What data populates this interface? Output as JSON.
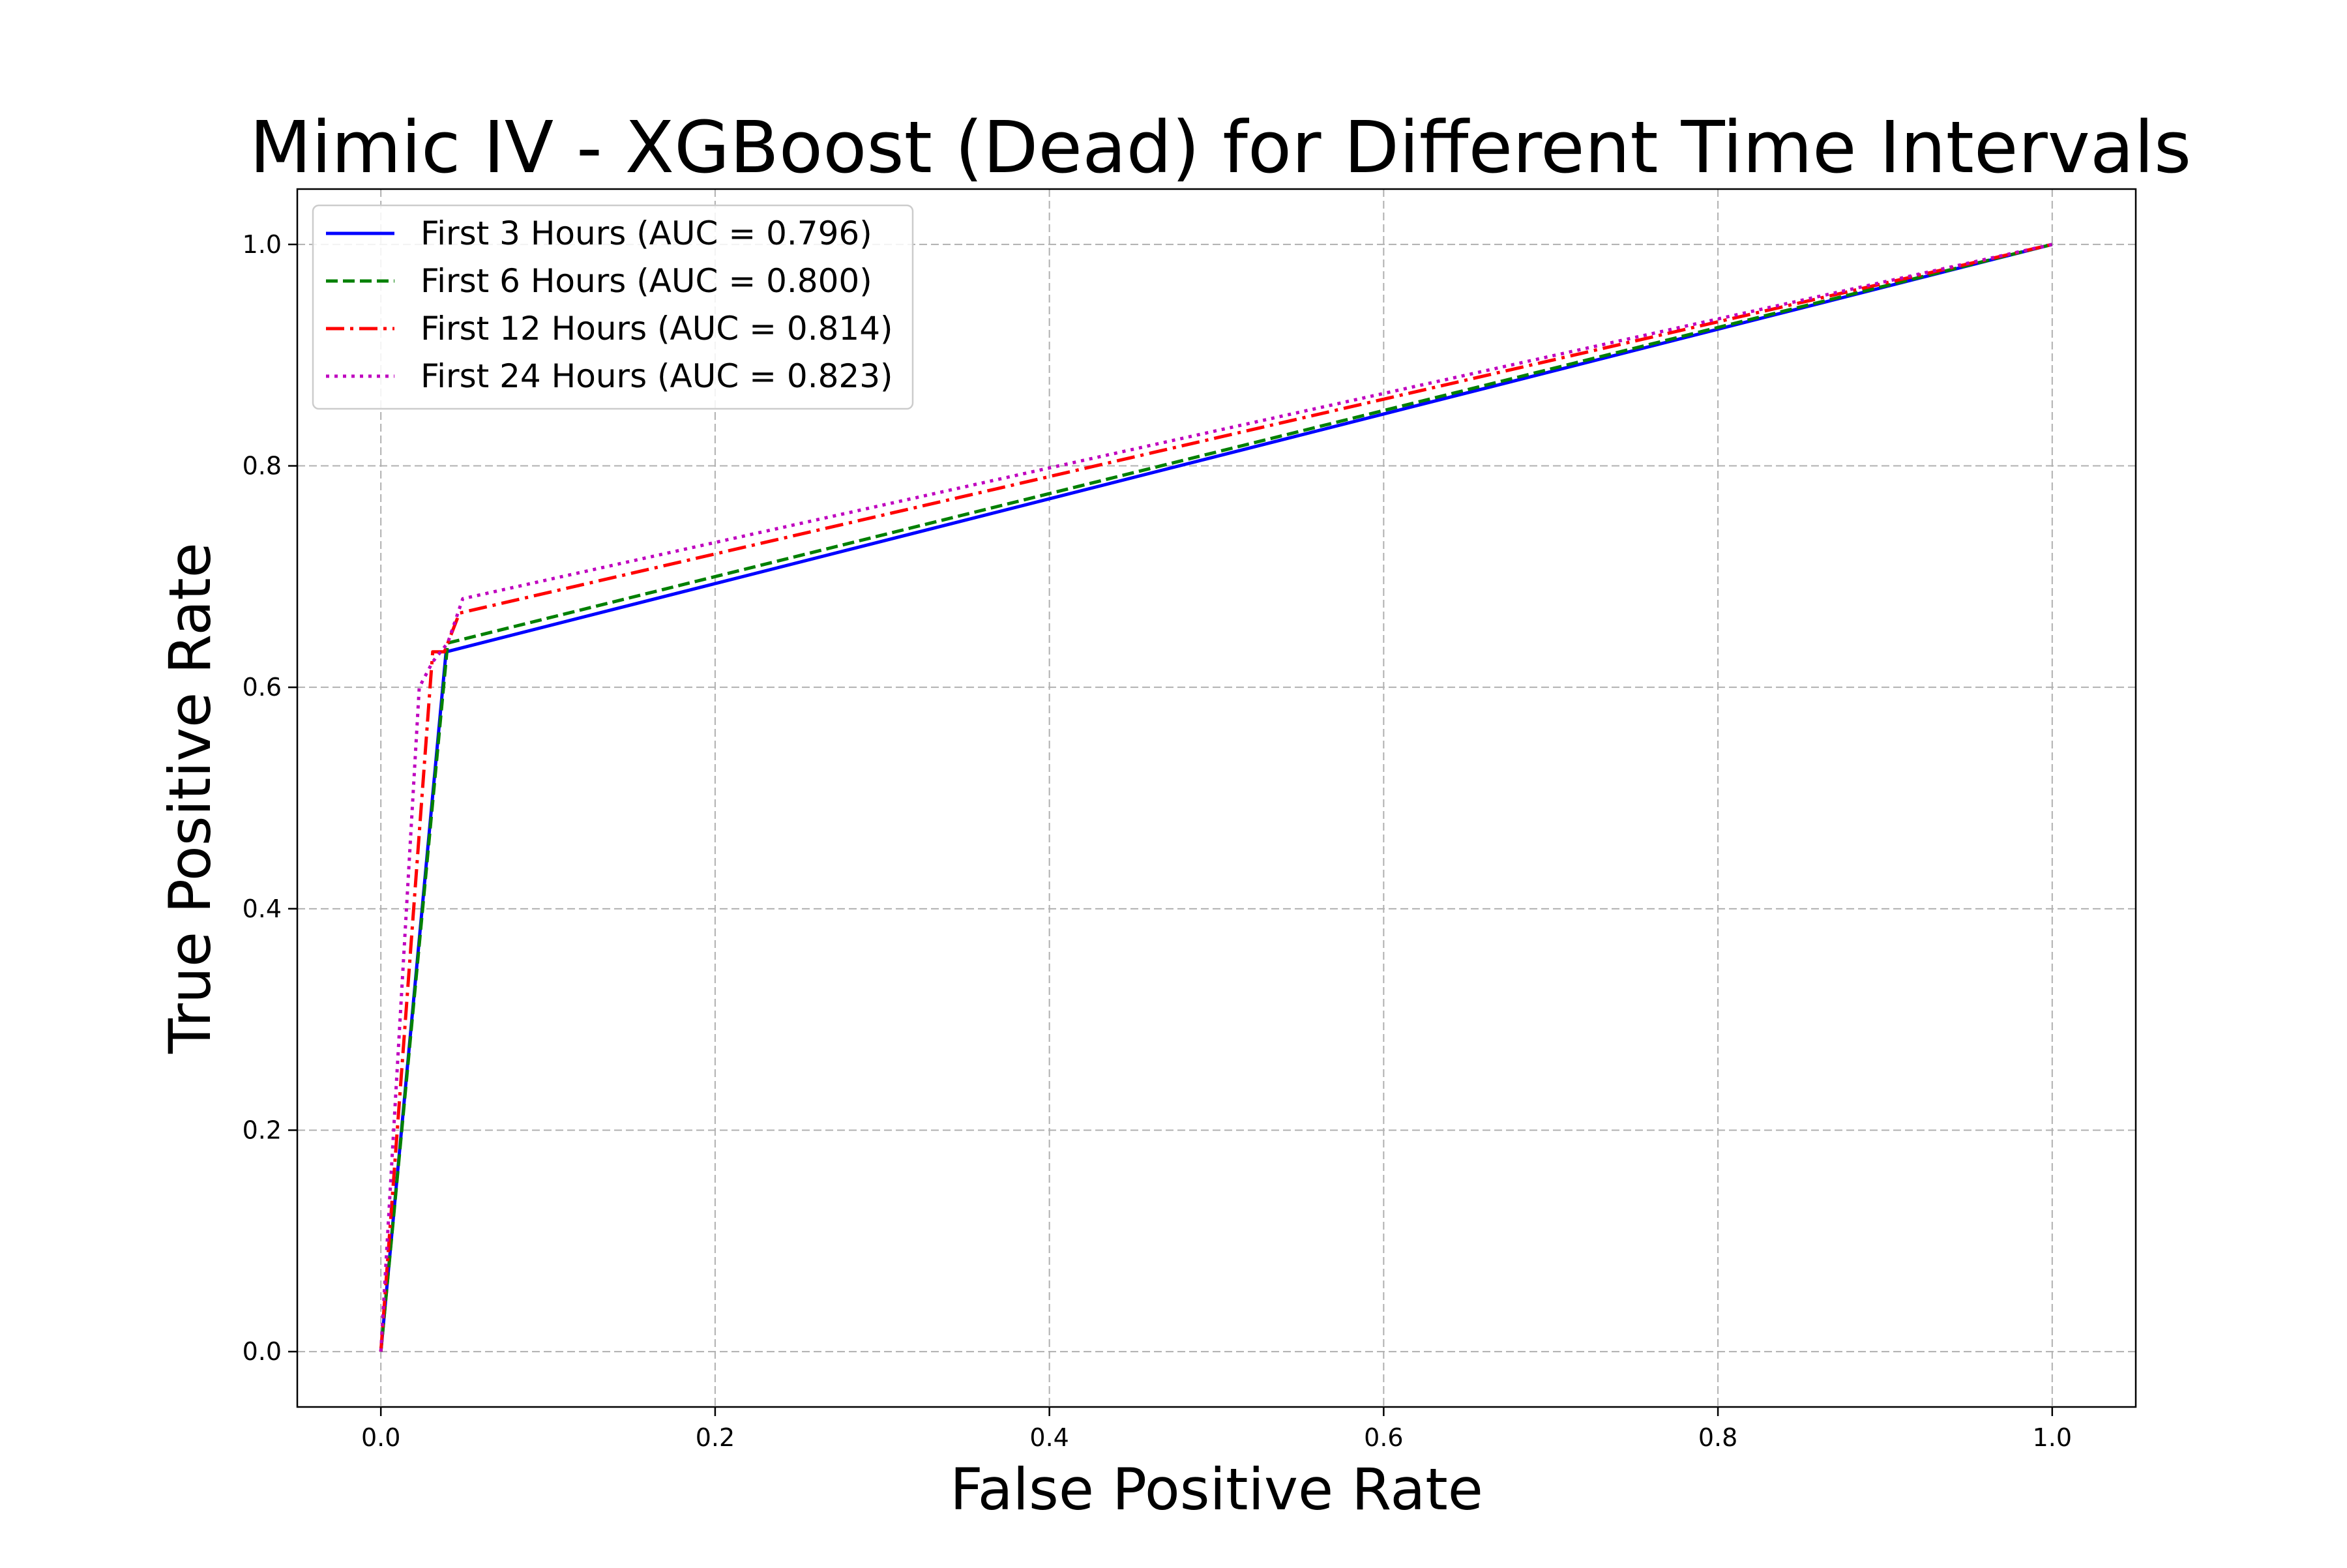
{
  "chart_data": {
    "type": "line",
    "title": "Mimic IV - XGBoost (Dead) for Different Time Intervals",
    "xlabel": "False Positive Rate",
    "ylabel": "True Positive Rate",
    "xlim": [
      -0.05,
      1.05
    ],
    "ylim": [
      -0.05,
      1.05
    ],
    "xticks": [
      "0.0",
      "0.2",
      "0.4",
      "0.6",
      "0.8",
      "1.0"
    ],
    "yticks": [
      "0.0",
      "0.2",
      "0.4",
      "0.6",
      "0.8",
      "1.0"
    ],
    "grid": true,
    "legend_position": "upper-left",
    "series": [
      {
        "name": "First 3 Hours (AUC = 0.796)",
        "color": "#0000ff",
        "linestyle": "solid",
        "x": [
          0.0,
          0.039,
          1.0
        ],
        "y": [
          0.0,
          0.632,
          1.0
        ]
      },
      {
        "name": "First 6 Hours (AUC = 0.800)",
        "color": "#008000",
        "linestyle": "dashed",
        "x": [
          0.0,
          0.04,
          1.0
        ],
        "y": [
          0.0,
          0.64,
          1.0
        ]
      },
      {
        "name": "First 12 Hours (AUC = 0.814)",
        "color": "#ff0000",
        "linestyle": "dashdot",
        "x": [
          0.0,
          0.031,
          0.038,
          0.047,
          1.0
        ],
        "y": [
          0.0,
          0.632,
          0.632,
          0.667,
          1.0
        ]
      },
      {
        "name": "First 24 Hours (AUC = 0.823)",
        "color": "#bf00bf",
        "linestyle": "dotted",
        "x": [
          0.0,
          0.023,
          0.031,
          0.04,
          0.049,
          1.0
        ],
        "y": [
          0.0,
          0.6,
          0.623,
          0.64,
          0.68,
          1.0
        ]
      }
    ]
  }
}
